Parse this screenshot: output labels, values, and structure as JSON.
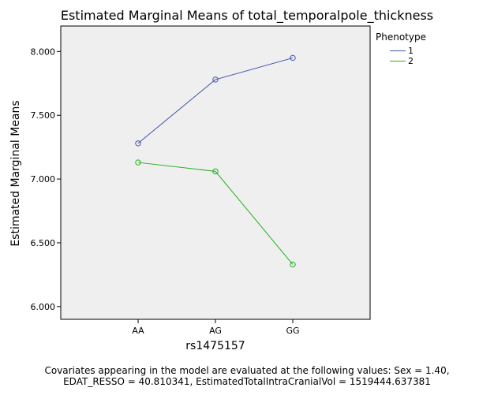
{
  "chart_data": {
    "type": "line",
    "title": "Estimated Marginal Means of total_temporalpole_thickness",
    "xlabel": "rs1475157",
    "ylabel": "Estimated Marginal Means",
    "categories": [
      "AA",
      "AG",
      "GG"
    ],
    "ylim": [
      5.9,
      8.2
    ],
    "yticks": [
      6.0,
      6.5,
      7.0,
      7.5,
      8.0
    ],
    "ytick_labels": [
      "6.000",
      "6.500",
      "7.000",
      "7.500",
      "8.000"
    ],
    "legend_title": "Phenotype",
    "legend_position": "right",
    "plot_background": "#efefef",
    "series": [
      {
        "name": "1",
        "values": [
          7.28,
          7.78,
          7.95
        ],
        "color": "#3e53ab"
      },
      {
        "name": "2",
        "values": [
          7.13,
          7.06,
          6.33
        ],
        "color": "#20b020"
      }
    ]
  },
  "footnote": {
    "line1": "Covariates appearing in the model are evaluated at the following values: Sex = 1.40,",
    "line2": "EDAT_RESSO = 40.810341, EstimatedTotalIntraCranialVol = 1519444.637381"
  }
}
